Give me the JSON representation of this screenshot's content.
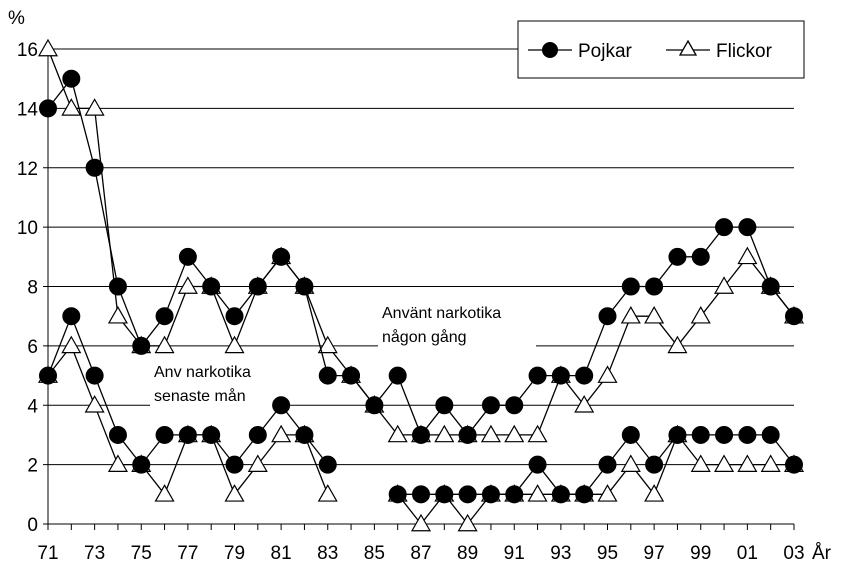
{
  "chart_data": {
    "type": "line",
    "ylabel": "%",
    "xlabel": "År",
    "ylim": [
      0,
      16
    ],
    "yticks": [
      "0",
      "2",
      "4",
      "6",
      "8",
      "10",
      "12",
      "14",
      "16"
    ],
    "x_start": 1971,
    "x_end": 2003,
    "xtick_labels": [
      "71",
      "73",
      "75",
      "77",
      "79",
      "81",
      "83",
      "85",
      "87",
      "89",
      "91",
      "93",
      "95",
      "97",
      "99",
      "01",
      "03"
    ],
    "grid": "horizontal",
    "legend_position": "top-right",
    "legend": [
      "Pojkar",
      "Flickor"
    ],
    "annotations": {
      "ever": [
        "Använt narkotika",
        "någon gång"
      ],
      "recent": [
        "Anv narkotika",
        "senaste mån"
      ]
    },
    "x_ever": [
      1971,
      1972,
      1973,
      1974,
      1975,
      1976,
      1977,
      1978,
      1979,
      1980,
      1981,
      1982,
      1983,
      1984,
      1985,
      1986,
      1987,
      1988,
      1989,
      1990,
      1991,
      1992,
      1993,
      1994,
      1995,
      1996,
      1997,
      1998,
      1999,
      2000,
      2001,
      2002,
      2003
    ],
    "x_recent": [
      [
        1971,
        1972,
        1973,
        1974,
        1975,
        1976,
        1977,
        1978,
        1979,
        1980,
        1981,
        1982,
        1983
      ],
      [
        1986,
        1987,
        1988,
        1989,
        1990,
        1991,
        1992,
        1993,
        1994,
        1995,
        1996,
        1997,
        1998,
        1999,
        2000,
        2001,
        2002,
        2003
      ]
    ],
    "series": [
      {
        "name": "Pojkar",
        "marker": "circle",
        "ever": [
          14,
          15,
          12,
          8,
          6,
          7,
          9,
          8,
          7,
          8,
          9,
          8,
          5,
          5,
          4,
          5,
          3,
          4,
          3,
          4,
          4,
          5,
          5,
          5,
          7,
          8,
          8,
          9,
          9,
          10,
          10,
          8,
          7
        ],
        "recent": [
          [
            5,
            7,
            5,
            3,
            2,
            3,
            3,
            3,
            2,
            3,
            4,
            3,
            2
          ],
          [
            1,
            1,
            1,
            1,
            1,
            1,
            2,
            1,
            1,
            2,
            3,
            2,
            3,
            3,
            3,
            3,
            3,
            2
          ]
        ]
      },
      {
        "name": "Flickor",
        "marker": "triangle",
        "ever": [
          16,
          14,
          14,
          7,
          6,
          6,
          8,
          8,
          6,
          8,
          9,
          8,
          6,
          5,
          4,
          3,
          3,
          3,
          3,
          3,
          3,
          3,
          5,
          4,
          5,
          7,
          7,
          6,
          7,
          8,
          9,
          8,
          7
        ],
        "recent": [
          [
            5,
            6,
            4,
            2,
            2,
            1,
            3,
            3,
            1,
            2,
            3,
            3,
            1
          ],
          [
            1,
            0,
            1,
            0,
            1,
            1,
            1,
            1,
            1,
            1,
            2,
            1,
            3,
            2,
            2,
            2,
            2,
            2
          ]
        ]
      }
    ]
  }
}
